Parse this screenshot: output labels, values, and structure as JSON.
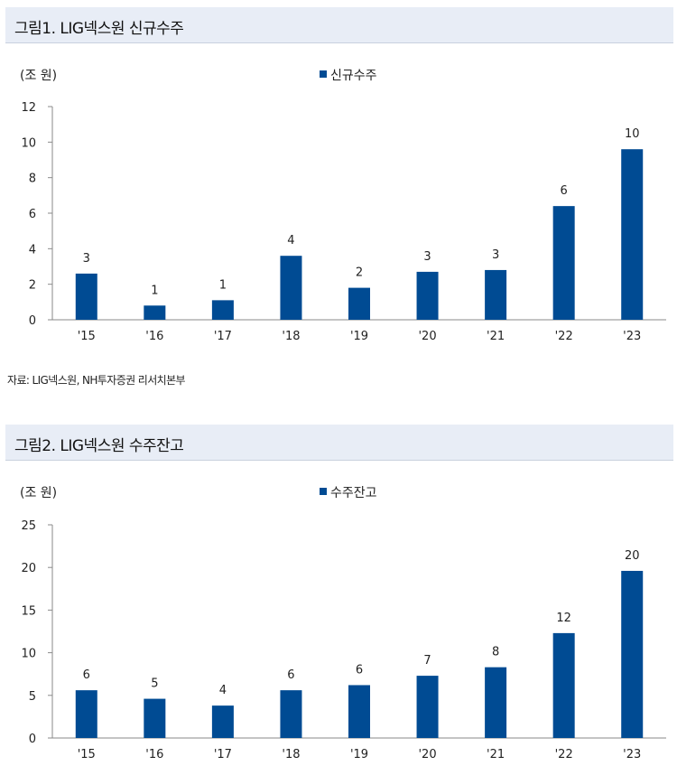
{
  "colors": {
    "bar": "#004b93",
    "axis": "#8a8a8a",
    "title_bg": "#e8edf6"
  },
  "figures": [
    {
      "title": "그림1. LIG넥스원 신규수주"
    },
    {
      "title": "그림2. LIG넥스원 수주잔고"
    }
  ],
  "source": "자료: LIG넥스원, NH투자증권 리서치본부",
  "chart_data": [
    {
      "type": "bar",
      "unit_label": "(조 원)",
      "categories": [
        "'15",
        "'16",
        "'17",
        "'18",
        "'19",
        "'20",
        "'21",
        "'22",
        "'23"
      ],
      "series": [
        {
          "name": "신규수주",
          "values": [
            2.6,
            0.8,
            1.1,
            3.6,
            1.8,
            2.7,
            2.8,
            6.4,
            9.6
          ],
          "labels": [
            "3",
            "1",
            "1",
            "4",
            "2",
            "3",
            "3",
            "6",
            "10"
          ]
        }
      ],
      "yticks": [
        "0",
        "2",
        "4",
        "6",
        "8",
        "10",
        "12"
      ],
      "ylim": [
        0,
        12
      ],
      "legend_position": "top-center"
    },
    {
      "type": "bar",
      "unit_label": "(조 원)",
      "categories": [
        "'15",
        "'16",
        "'17",
        "'18",
        "'19",
        "'20",
        "'21",
        "'22",
        "'23"
      ],
      "series": [
        {
          "name": "수주잔고",
          "values": [
            5.6,
            4.6,
            3.8,
            5.6,
            6.2,
            7.3,
            8.3,
            12.3,
            19.6
          ],
          "labels": [
            "6",
            "5",
            "4",
            "6",
            "6",
            "7",
            "8",
            "12",
            "20"
          ]
        }
      ],
      "yticks": [
        "0",
        "5",
        "10",
        "15",
        "20",
        "25"
      ],
      "ylim": [
        0,
        25
      ],
      "legend_position": "top-center"
    }
  ]
}
